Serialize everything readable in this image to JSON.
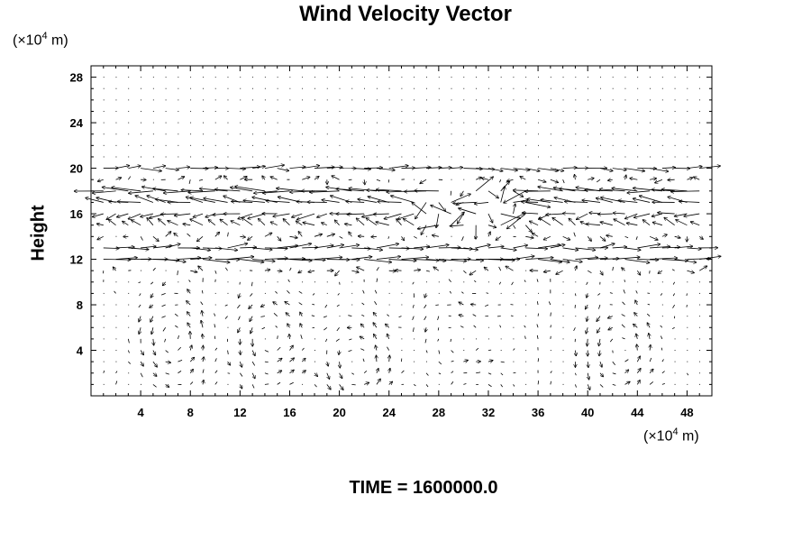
{
  "chart_data": {
    "type": "vector",
    "title": "Wind Velocity Vector",
    "ylabel": "Height",
    "x_unit": "(×10",
    "x_unit_exp": "4",
    "x_unit_tail": " m)",
    "y_unit": "(×10",
    "y_unit_exp": "4",
    "y_unit_tail": " m)",
    "xlim": [
      0,
      50
    ],
    "ylim": [
      0,
      29
    ],
    "x_ticks": [
      4,
      8,
      12,
      16,
      20,
      24,
      28,
      32,
      36,
      40,
      44,
      48
    ],
    "y_ticks": [
      4,
      8,
      12,
      16,
      20,
      24,
      28
    ],
    "grid": false,
    "annotation": "TIME = 1600000.0",
    "vector_rows": [
      {
        "y": 20,
        "u": 1.4,
        "v": 0.0
      },
      {
        "y": 18,
        "u": -2.2,
        "v": 0.1
      },
      {
        "y": 17,
        "u": -1.8,
        "v": 0.3
      },
      {
        "y": 16,
        "u": -1.2,
        "v": -0.2
      },
      {
        "y": 15,
        "u": -0.8,
        "v": 0.4
      },
      {
        "y": 13,
        "u": 1.6,
        "v": 0.1
      },
      {
        "y": 12,
        "u": 2.0,
        "v": 0.0
      }
    ],
    "circulation_cells": [
      {
        "x_center": 6,
        "y_center": 5
      },
      {
        "x_center": 15,
        "y_center": 5
      },
      {
        "x_center": 22,
        "y_center": 3
      },
      {
        "x_center": 31,
        "y_center": 5
      },
      {
        "x_center": 43,
        "y_center": 4
      }
    ]
  }
}
